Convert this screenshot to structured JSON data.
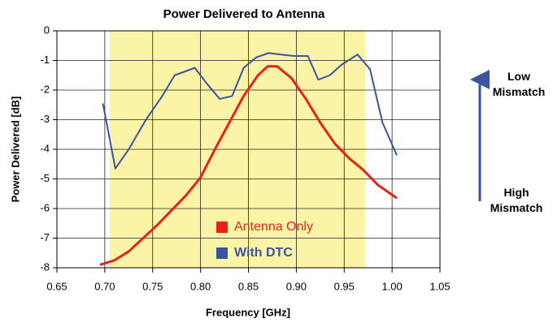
{
  "chart_data": {
    "type": "line",
    "title": "Power Delivered to Antenna",
    "xlabel": "Frequency [GHz]",
    "ylabel": "Power Delivered [dB]",
    "xlim": [
      0.65,
      1.05
    ],
    "ylim": [
      -8,
      0
    ],
    "xticks": [
      0.65,
      {
        "value": 0.7,
        "label": "0.70"
      },
      0.75,
      {
        "value": 0.8,
        "label": "0.80"
      },
      0.85,
      {
        "value": 0.9,
        "label": "0.90"
      },
      0.95,
      {
        "value": 1.0,
        "label": "1.00"
      },
      1.05
    ],
    "yticks": [
      0,
      -1,
      -2,
      -3,
      -4,
      -5,
      -6,
      -7,
      -8
    ],
    "grid": true,
    "highlight_xlim": [
      0.705,
      0.972
    ],
    "highlight_color": "#fbf4a6",
    "annotations": [
      "Low Mismatch",
      "High Mismatch"
    ],
    "series": [
      {
        "name": "Antenna Only",
        "color": "#e8211d",
        "x": [
          0.695,
          0.71,
          0.725,
          0.74,
          0.755,
          0.77,
          0.785,
          0.8,
          0.815,
          0.83,
          0.845,
          0.86,
          0.87,
          0.88,
          0.895,
          0.91,
          0.925,
          0.94,
          0.955,
          0.97,
          0.985,
          1.005
        ],
        "values": [
          -7.9,
          -7.75,
          -7.45,
          -7.0,
          -6.55,
          -6.05,
          -5.55,
          -4.95,
          -4.0,
          -3.1,
          -2.2,
          -1.5,
          -1.2,
          -1.2,
          -1.6,
          -2.3,
          -3.1,
          -3.8,
          -4.3,
          -4.7,
          -5.2,
          -5.65
        ]
      },
      {
        "name": "With DTC",
        "color": "#3a54a4",
        "x": [
          0.698,
          0.711,
          0.725,
          0.743,
          0.76,
          0.773,
          0.794,
          0.807,
          0.82,
          0.833,
          0.845,
          0.858,
          0.871,
          0.884,
          0.898,
          0.912,
          0.923,
          0.935,
          0.947,
          0.964,
          0.977,
          0.99,
          1.005
        ],
        "values": [
          -2.45,
          -4.65,
          -4.0,
          -3.0,
          -2.2,
          -1.5,
          -1.25,
          -1.8,
          -2.3,
          -2.2,
          -1.25,
          -0.9,
          -0.75,
          -0.8,
          -0.85,
          -0.85,
          -1.65,
          -1.5,
          -1.15,
          -0.8,
          -1.3,
          -3.1,
          -4.2
        ]
      }
    ]
  }
}
